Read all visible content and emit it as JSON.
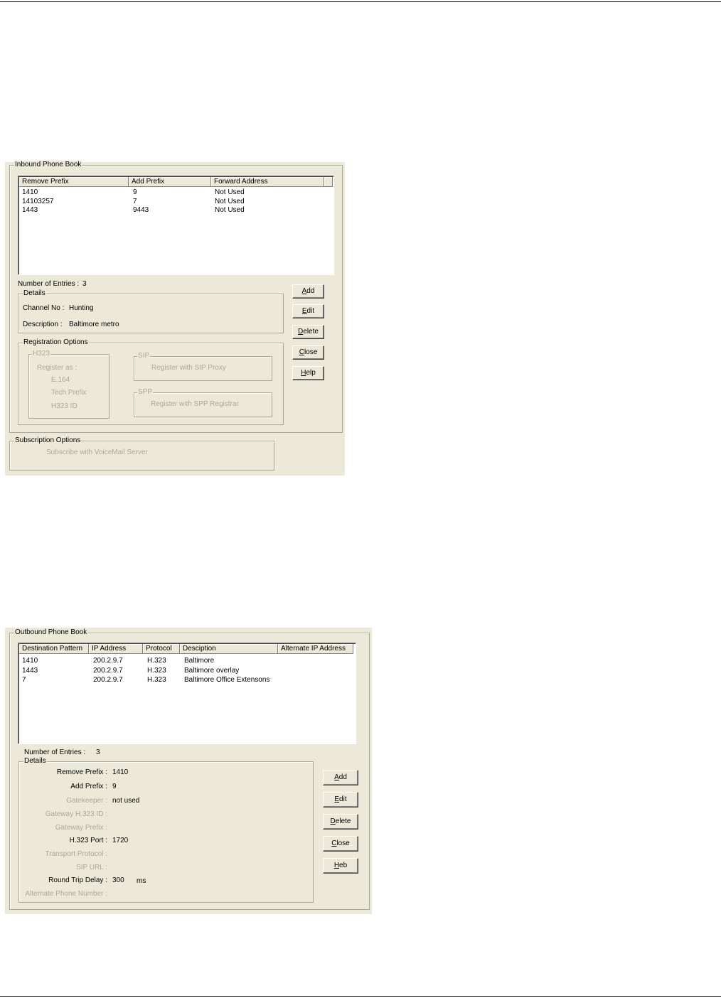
{
  "inbound": {
    "title": "Inbound  Phone Book",
    "columns": [
      "Remove Prefix",
      "Add Prefix",
      "Forward Address"
    ],
    "rows": [
      [
        "1410",
        "9",
        "Not Used"
      ],
      [
        "14103257",
        "7",
        "Not Used"
      ],
      [
        "1443",
        "9443",
        "Not Used"
      ]
    ],
    "entries_label": "Number of Entries :",
    "entries_value": "3",
    "details": {
      "title": "Details",
      "channel_label": "Channel No :",
      "channel_value": "Hunting",
      "description_label": "Description :",
      "description_value": "Baltimore metro"
    },
    "registration": {
      "title": "Registration Options",
      "h323": {
        "title": "H323",
        "register_as": "Register as :",
        "options": [
          "E.164",
          "Tech Prefix",
          "H323 ID"
        ]
      },
      "sip": {
        "title": "SIP",
        "text": "Register with SIP Proxy"
      },
      "spp": {
        "title": "SPP",
        "text": "Register with SPP Registrar"
      }
    },
    "subscription": {
      "title": "Subscription Options",
      "text": "Subscribe with VoiceMail Server"
    },
    "buttons": [
      {
        "hot": "A",
        "rest": "dd"
      },
      {
        "hot": "E",
        "rest": "dit"
      },
      {
        "hot": "D",
        "rest": "elete"
      },
      {
        "hot": "C",
        "rest": "lose"
      },
      {
        "hot": "H",
        "rest": "elp"
      }
    ]
  },
  "outbound": {
    "title": "Outbound Phone Book",
    "columns": [
      "Destination Pattern",
      "IP Address",
      "Protocol",
      "Desciption",
      "Alternate IP Address"
    ],
    "rows": [
      [
        "1410",
        "200.2.9.7",
        "H.323",
        "Baltimore",
        ""
      ],
      [
        "1443",
        "200.2.9.7",
        "H.323",
        "Baltimore overlay",
        ""
      ],
      [
        "7",
        "200.2.9.7",
        "H.323",
        "Baltimore Office Extensons",
        ""
      ]
    ],
    "entries_label": "Number of Entries :",
    "entries_value": "3",
    "details": {
      "title": "Details",
      "fields": [
        {
          "label": "Remove Prefix :",
          "value": "1410",
          "enabled": true
        },
        {
          "label": "Add Prefix :",
          "value": "9",
          "enabled": true
        },
        {
          "label": "Gatekeeper :",
          "value": "not used",
          "enabled": false
        },
        {
          "label": "Gateway H.323 ID :",
          "value": "",
          "enabled": false
        },
        {
          "label": "Gateway Prefix :",
          "value": "",
          "enabled": false
        },
        {
          "label": "H.323 Port :",
          "value": "1720",
          "enabled": true
        },
        {
          "label": "Transport Protocol :",
          "value": "",
          "enabled": false
        },
        {
          "label": "SIP URL :",
          "value": "",
          "enabled": false
        },
        {
          "label": "Round Trip Delay :",
          "value": "300",
          "unit": "ms",
          "enabled": true
        },
        {
          "label": "Alternate Phone Number :",
          "value": "",
          "enabled": false
        }
      ]
    },
    "buttons": [
      {
        "hot": "A",
        "rest": "dd"
      },
      {
        "hot": "E",
        "rest": "dit"
      },
      {
        "hot": "D",
        "rest": "elete"
      },
      {
        "hot": "C",
        "rest": "lose"
      },
      {
        "hot": "H",
        "rest": "eb"
      }
    ]
  },
  "colors": {
    "dialog_bg": "#ece9d8",
    "disabled_text": "#aca899",
    "list_bg": "#ffffff"
  }
}
